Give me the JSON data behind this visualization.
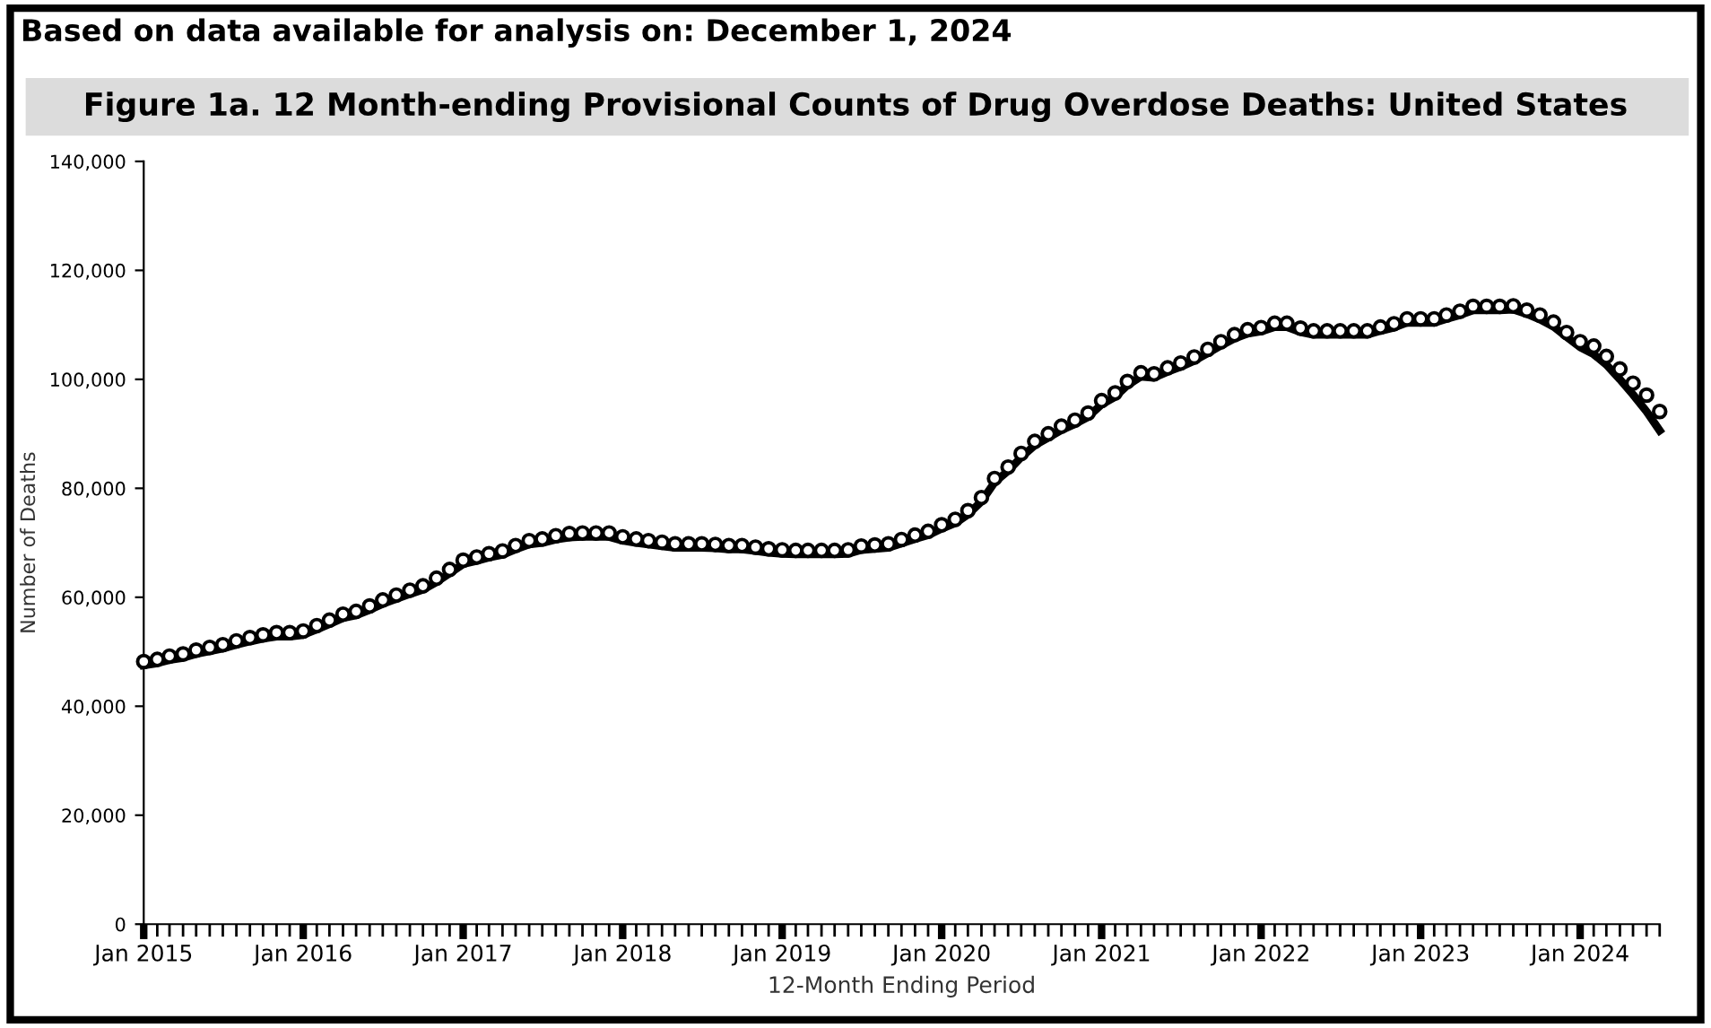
{
  "chart_data": {
    "type": "line",
    "title": "Figure 1a. 12 Month-ending Provisional Counts of Drug Overdose Deaths: United States",
    "annotations": [
      "Based on data available for analysis on: December 1, 2024"
    ],
    "xlabel": "12-Month Ending Period",
    "ylabel": "Number of Deaths",
    "x": [
      "2015-01",
      "2015-02",
      "2015-03",
      "2015-04",
      "2015-05",
      "2015-06",
      "2015-07",
      "2015-08",
      "2015-09",
      "2015-10",
      "2015-11",
      "2015-12",
      "2016-01",
      "2016-02",
      "2016-03",
      "2016-04",
      "2016-05",
      "2016-06",
      "2016-07",
      "2016-08",
      "2016-09",
      "2016-10",
      "2016-11",
      "2016-12",
      "2017-01",
      "2017-02",
      "2017-03",
      "2017-04",
      "2017-05",
      "2017-06",
      "2017-07",
      "2017-08",
      "2017-09",
      "2017-10",
      "2017-11",
      "2017-12",
      "2018-01",
      "2018-02",
      "2018-03",
      "2018-04",
      "2018-05",
      "2018-06",
      "2018-07",
      "2018-08",
      "2018-09",
      "2018-10",
      "2018-11",
      "2018-12",
      "2019-01",
      "2019-02",
      "2019-03",
      "2019-04",
      "2019-05",
      "2019-06",
      "2019-07",
      "2019-08",
      "2019-09",
      "2019-10",
      "2019-11",
      "2019-12",
      "2020-01",
      "2020-02",
      "2020-03",
      "2020-04",
      "2020-05",
      "2020-06",
      "2020-07",
      "2020-08",
      "2020-09",
      "2020-10",
      "2020-11",
      "2020-12",
      "2021-01",
      "2021-02",
      "2021-03",
      "2021-04",
      "2021-05",
      "2021-06",
      "2021-07",
      "2021-08",
      "2021-09",
      "2021-10",
      "2021-11",
      "2021-12",
      "2022-01",
      "2022-02",
      "2022-03",
      "2022-04",
      "2022-05",
      "2022-06",
      "2022-07",
      "2022-08",
      "2022-09",
      "2022-10",
      "2022-11",
      "2022-12",
      "2023-01",
      "2023-02",
      "2023-03",
      "2023-04",
      "2023-05",
      "2023-06",
      "2023-07",
      "2023-08",
      "2023-09",
      "2023-10",
      "2023-11",
      "2023-12",
      "2024-01",
      "2024-02",
      "2024-03",
      "2024-04",
      "2024-05",
      "2024-06",
      "2024-07"
    ],
    "series": [
      {
        "color": "#000000",
        "marker": "none",
        "line_style": "solid",
        "values": [
          47500,
          47900,
          48500,
          48900,
          49600,
          50100,
          50600,
          51300,
          51900,
          52400,
          52800,
          52800,
          53100,
          54100,
          55100,
          56200,
          56700,
          57700,
          58800,
          59700,
          60600,
          61400,
          62800,
          64400,
          66100,
          66700,
          67300,
          67800,
          68800,
          69700,
          70000,
          70600,
          71000,
          71100,
          71100,
          71100,
          70400,
          70000,
          69700,
          69400,
          69100,
          69100,
          69100,
          69000,
          68800,
          68800,
          68500,
          68200,
          68000,
          67900,
          67900,
          67900,
          67900,
          68000,
          68700,
          68900,
          69100,
          69900,
          70700,
          71400,
          72600,
          73600,
          75200,
          77600,
          81100,
          83200,
          85700,
          87900,
          89300,
          90700,
          91800,
          93100,
          95400,
          96800,
          98900,
          100500,
          100300,
          101400,
          102300,
          103400,
          104800,
          106200,
          107500,
          108400,
          108800,
          109600,
          109600,
          108700,
          108200,
          108200,
          108200,
          108200,
          108200,
          108900,
          109500,
          110400,
          110400,
          110400,
          111100,
          111800,
          112700,
          112700,
          112700,
          112800,
          112000,
          111000,
          109700,
          107800,
          105900,
          104600,
          102700,
          100000,
          97200,
          94100,
          90600
        ]
      },
      {
        "type": "scatter",
        "color": "#000000",
        "marker": "circle",
        "values": [
          48200,
          48600,
          49200,
          49600,
          50300,
          50800,
          51300,
          52000,
          52600,
          53100,
          53500,
          53500,
          53800,
          54800,
          55800,
          56900,
          57400,
          58400,
          59500,
          60400,
          61300,
          62100,
          63500,
          65100,
          66800,
          67400,
          68000,
          68500,
          69500,
          70400,
          70700,
          71300,
          71700,
          71800,
          71800,
          71800,
          71100,
          70700,
          70400,
          70100,
          69800,
          69800,
          69800,
          69700,
          69500,
          69500,
          69200,
          68900,
          68700,
          68600,
          68600,
          68600,
          68600,
          68700,
          69400,
          69600,
          69800,
          70600,
          71400,
          72100,
          73300,
          74300,
          75900,
          78300,
          81800,
          83900,
          86400,
          88600,
          90000,
          91400,
          92500,
          93800,
          96100,
          97500,
          99600,
          101200,
          101000,
          102100,
          103000,
          104100,
          105500,
          106900,
          108200,
          109100,
          109500,
          110300,
          110300,
          109400,
          108900,
          108900,
          108900,
          108900,
          108900,
          109600,
          110200,
          111100,
          111100,
          111100,
          111800,
          112500,
          113400,
          113400,
          113400,
          113500,
          112700,
          111800,
          110500,
          108600,
          106900,
          106100,
          104200,
          101900,
          99300,
          97100,
          94100
        ]
      }
    ],
    "xlim": [
      "2015-01",
      "2024-07"
    ],
    "xticks": [
      {
        "value": "2015-01",
        "label": "Jan 2015"
      },
      {
        "value": "2016-01",
        "label": "Jan 2016"
      },
      {
        "value": "2017-01",
        "label": "Jan 2017"
      },
      {
        "value": "2018-01",
        "label": "Jan 2018"
      },
      {
        "value": "2019-01",
        "label": "Jan 2019"
      },
      {
        "value": "2020-01",
        "label": "Jan 2020"
      },
      {
        "value": "2021-01",
        "label": "Jan 2021"
      },
      {
        "value": "2022-01",
        "label": "Jan 2022"
      },
      {
        "value": "2023-01",
        "label": "Jan 2023"
      },
      {
        "value": "2024-01",
        "label": "Jan 2024"
      }
    ],
    "ylim": [
      0,
      140000
    ],
    "yticks": [
      {
        "value": 0,
        "label": "0"
      },
      {
        "value": 20000,
        "label": "20,000"
      },
      {
        "value": 40000,
        "label": "40,000"
      },
      {
        "value": 60000,
        "label": "60,000"
      },
      {
        "value": 80000,
        "label": "80,000"
      },
      {
        "value": 100000,
        "label": "100,000"
      },
      {
        "value": 120000,
        "label": "120,000"
      },
      {
        "value": 140000,
        "label": "140,000"
      }
    ],
    "grid": false
  }
}
